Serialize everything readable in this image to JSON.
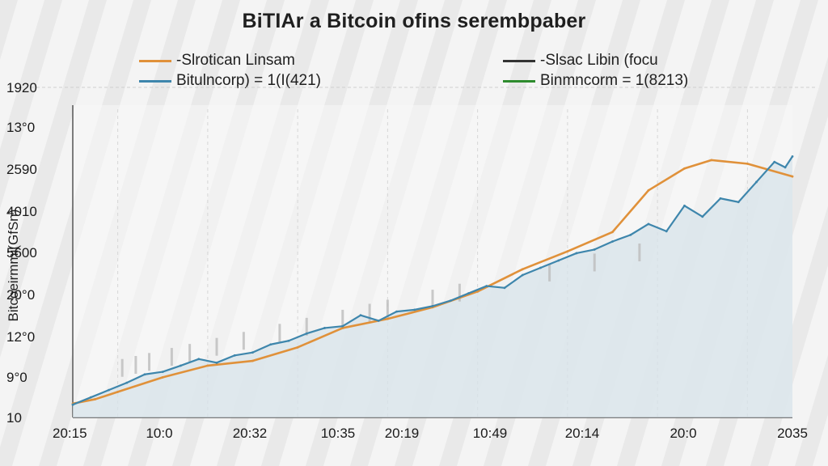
{
  "chart_data": {
    "type": "line",
    "title": "BiTIAr a Bitcoin ofins serembpaber",
    "ylabel": "Bitcoeirmmi(GfSn)",
    "xlabel": "",
    "y_tick_labels": [
      "1920",
      "13°0",
      "2590",
      "4010",
      "5600",
      "20°0",
      "12°0",
      "9°0",
      "10"
    ],
    "x_tick_labels": [
      "20:15",
      "10:0",
      "20:32",
      "10:35",
      "20:19",
      "10:49",
      "20:14",
      "20:0",
      "2035"
    ],
    "ylim": [
      0,
      8
    ],
    "grid": "vertical dashed",
    "legend_placement": "top",
    "legend": [
      {
        "label": "-Slrotican Linsam",
        "color": "#e0913a"
      },
      {
        "label": "-Slsac  Libin (focu",
        "color": "#333333"
      },
      {
        "label": "Bitulncorp) = 1(I(421)",
        "color": "#3e86ac"
      },
      {
        "label": "Binmncorm = 1(8213)",
        "color": "#2e8b2e"
      }
    ],
    "series": [
      {
        "name": "-Slrotican Linsam",
        "color": "#e0913a",
        "x": [
          0,
          0.25,
          0.5,
          1,
          1.5,
          2,
          2.5,
          3,
          3.5,
          4,
          4.5,
          5,
          5.5,
          6,
          6.4,
          6.8,
          7.1,
          7.5,
          8
        ],
        "y": [
          0.38,
          0.5,
          0.7,
          1.1,
          1.42,
          1.55,
          1.92,
          2.45,
          2.7,
          3.02,
          3.45,
          4.06,
          4.55,
          5.08,
          6.22,
          6.82,
          7.05,
          6.95,
          6.6
        ]
      },
      {
        "name": "Bitulncorp) = 1(I(421)",
        "color": "#3e86ac",
        "x": [
          0,
          0.2,
          0.4,
          0.6,
          0.8,
          1.0,
          1.2,
          1.4,
          1.6,
          1.8,
          2.0,
          2.2,
          2.4,
          2.6,
          2.8,
          3.0,
          3.2,
          3.4,
          3.6,
          3.8,
          4.0,
          4.2,
          4.4,
          4.6,
          4.8,
          5.0,
          5.2,
          5.4,
          5.6,
          5.8,
          6.0,
          6.2,
          6.4,
          6.6,
          6.8,
          7.0,
          7.2,
          7.4,
          7.6,
          7.8,
          7.92,
          8.0
        ],
        "y": [
          0.35,
          0.55,
          0.75,
          0.95,
          1.18,
          1.25,
          1.42,
          1.6,
          1.5,
          1.7,
          1.78,
          2.0,
          2.1,
          2.3,
          2.45,
          2.5,
          2.8,
          2.65,
          2.9,
          2.95,
          3.05,
          3.2,
          3.4,
          3.6,
          3.55,
          3.9,
          4.1,
          4.3,
          4.5,
          4.6,
          4.82,
          5.0,
          5.3,
          5.1,
          5.8,
          5.5,
          6.0,
          5.9,
          6.45,
          7.0,
          6.85,
          7.15
        ]
      }
    ]
  }
}
